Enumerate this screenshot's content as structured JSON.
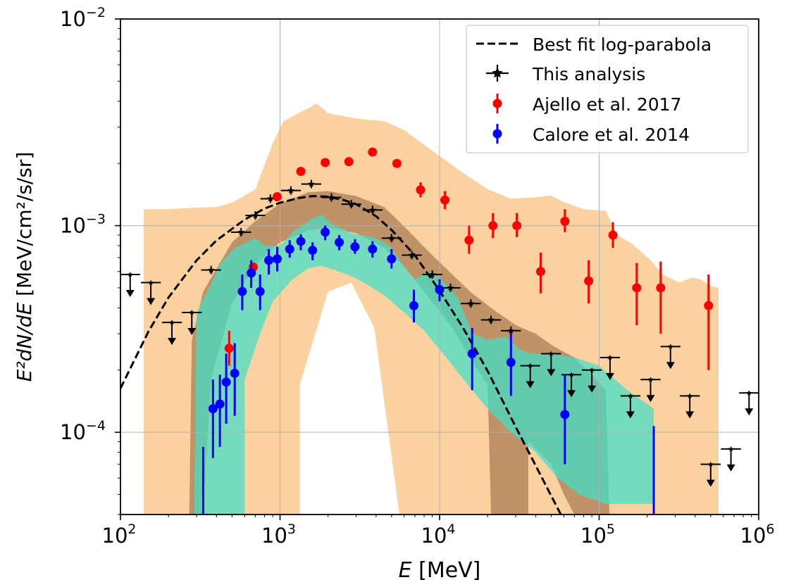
{
  "chart_data": {
    "type": "scatter",
    "title": "",
    "xlabel_var": "E",
    "xlabel_unit": "[MeV]",
    "ylabel_var": "E²dN/dE",
    "ylabel_unit": "[MeV/cm²/s/sr]",
    "xscale": "log",
    "yscale": "log",
    "xlim": [
      100,
      1000000
    ],
    "ylim": [
      4e-05,
      0.01
    ],
    "grid": true,
    "legend_position": "top-right",
    "xticks": [
      {
        "value": 100,
        "base": "10",
        "exp": "2"
      },
      {
        "value": 1000,
        "base": "10",
        "exp": "3"
      },
      {
        "value": 10000,
        "base": "10",
        "exp": "4"
      },
      {
        "value": 100000,
        "base": "10",
        "exp": "5"
      },
      {
        "value": 1000000,
        "base": "10",
        "exp": "6"
      }
    ],
    "yticks": [
      {
        "value": 0.0001,
        "base": "10",
        "exp": "−4"
      },
      {
        "value": 0.001,
        "base": "10",
        "exp": "−3"
      },
      {
        "value": 0.01,
        "base": "10",
        "exp": "−2"
      }
    ],
    "colors": {
      "black": "#000000",
      "red": "#ff0000",
      "blue": "#0000ff",
      "orange_band": "#fbc98f",
      "brown_band": "#a87a52",
      "cyan_band": "#40e0c8"
    },
    "series": [
      {
        "name": "Best fit log-parabola",
        "kind": "dashed-line",
        "x": [
          100,
          150,
          200,
          300,
          400,
          600,
          800,
          1000,
          1300,
          1600,
          2000,
          2500,
          3000,
          4000,
          5000,
          7000,
          10000,
          14000,
          20000,
          30000,
          40000,
          60000
        ],
        "y": [
          0.000163,
          0.000308,
          0.000449,
          0.00068,
          0.000849,
          0.00107,
          0.00121,
          0.00129,
          0.00136,
          0.00139,
          0.00138,
          0.00133,
          0.00127,
          0.00111,
          0.000953,
          0.000719,
          0.000484,
          0.000321,
          0.000198,
          0.000106,
          6.9e-05,
          3.75e-05
        ]
      },
      {
        "name": "This analysis",
        "kind": "points-xerr",
        "points": [
          {
            "x": 700,
            "y": 0.00112
          },
          {
            "x": 870,
            "y": 0.00135
          },
          {
            "x": 1170,
            "y": 0.00148
          },
          {
            "x": 1570,
            "y": 0.00159
          },
          {
            "x": 2100,
            "y": 0.00137
          },
          {
            "x": 2800,
            "y": 0.00127
          },
          {
            "x": 3800,
            "y": 0.00119
          },
          {
            "x": 5000,
            "y": 0.00087
          },
          {
            "x": 6700,
            "y": 0.00072
          },
          {
            "x": 9000,
            "y": 0.00058
          },
          {
            "x": 11700,
            "y": 0.0005
          },
          {
            "x": 15700,
            "y": 0.00042
          },
          {
            "x": 21000,
            "y": 0.00035
          },
          {
            "x": 28000,
            "y": 0.00031
          },
          {
            "x": 570,
            "y": 0.00093
          },
          {
            "x": 370,
            "y": 0.00061
          }
        ]
      },
      {
        "name": "This analysis (upper limits)",
        "kind": "upper-limits",
        "points": [
          {
            "x": 115,
            "y": 0.00058
          },
          {
            "x": 155,
            "y": 0.00053
          },
          {
            "x": 210,
            "y": 0.00034
          },
          {
            "x": 280,
            "y": 0.00038
          },
          {
            "x": 37000,
            "y": 0.00021
          },
          {
            "x": 50000,
            "y": 0.00024
          },
          {
            "x": 67000,
            "y": 0.00019
          },
          {
            "x": 90000,
            "y": 0.0002
          },
          {
            "x": 117000,
            "y": 0.00023
          },
          {
            "x": 157000,
            "y": 0.00015
          },
          {
            "x": 210000,
            "y": 0.00018
          },
          {
            "x": 280000,
            "y": 0.00026
          },
          {
            "x": 370000,
            "y": 0.00015
          },
          {
            "x": 500000,
            "y": 7e-05
          },
          {
            "x": 670000,
            "y": 8.3e-05
          },
          {
            "x": 870000,
            "y": 0.000155
          }
        ]
      },
      {
        "name": "Ajello et al. 2017",
        "kind": "points-yerr",
        "color": "#ff0000",
        "points": [
          {
            "x": 480,
            "y": 0.000255,
            "lo": 0.00021,
            "hi": 0.00031
          },
          {
            "x": 680,
            "y": 0.00063
          },
          {
            "x": 960,
            "y": 0.00138
          },
          {
            "x": 1350,
            "y": 0.00183
          },
          {
            "x": 1920,
            "y": 0.00202
          },
          {
            "x": 2700,
            "y": 0.00204
          },
          {
            "x": 3800,
            "y": 0.00227
          },
          {
            "x": 5400,
            "y": 0.002
          },
          {
            "x": 7600,
            "y": 0.00149,
            "lo": 0.00137,
            "hi": 0.00162
          },
          {
            "x": 10800,
            "y": 0.00133,
            "lo": 0.0012,
            "hi": 0.00147
          },
          {
            "x": 15300,
            "y": 0.00085,
            "lo": 0.00073,
            "hi": 0.001
          },
          {
            "x": 21600,
            "y": 0.001,
            "lo": 0.00087,
            "hi": 0.00115
          },
          {
            "x": 30500,
            "y": 0.001,
            "lo": 0.00088,
            "hi": 0.00115
          },
          {
            "x": 43000,
            "y": 0.0006,
            "lo": 0.00047,
            "hi": 0.00074
          },
          {
            "x": 61000,
            "y": 0.00105,
            "lo": 0.00093,
            "hi": 0.0012
          },
          {
            "x": 86000,
            "y": 0.00054,
            "lo": 0.00042,
            "hi": 0.00068
          },
          {
            "x": 122000,
            "y": 0.0009,
            "lo": 0.00078,
            "hi": 0.00104
          },
          {
            "x": 172000,
            "y": 0.0005,
            "lo": 0.00033,
            "hi": 0.00066
          },
          {
            "x": 243000,
            "y": 0.0005,
            "lo": 0.0003,
            "hi": 0.00067
          },
          {
            "x": 485000,
            "y": 0.00041,
            "lo": 0.0002,
            "hi": 0.00058
          }
        ]
      },
      {
        "name": "Calore et al. 2014",
        "kind": "points-yerr",
        "color": "#0000ff",
        "points": [
          {
            "x": 380,
            "y": 0.00013,
            "lo": 7.5e-05,
            "hi": 0.00018
          },
          {
            "x": 420,
            "y": 0.000137,
            "lo": 8.5e-05,
            "hi": 0.00019
          },
          {
            "x": 460,
            "y": 0.000175,
            "lo": 0.00011,
            "hi": 0.00024
          },
          {
            "x": 520,
            "y": 0.000193,
            "lo": 0.00012,
            "hi": 0.00027
          },
          {
            "x": 580,
            "y": 0.00048,
            "lo": 0.00039,
            "hi": 0.00058
          },
          {
            "x": 660,
            "y": 0.00059,
            "lo": 0.0005,
            "hi": 0.00068
          },
          {
            "x": 750,
            "y": 0.00048,
            "lo": 0.00039,
            "hi": 0.00058
          },
          {
            "x": 850,
            "y": 0.00068,
            "lo": 0.00058,
            "hi": 0.00077
          },
          {
            "x": 960,
            "y": 0.00069,
            "lo": 0.0006,
            "hi": 0.00079
          },
          {
            "x": 1150,
            "y": 0.00077,
            "lo": 0.0007,
            "hi": 0.00085
          },
          {
            "x": 1350,
            "y": 0.00084,
            "lo": 0.00076,
            "hi": 0.00091
          },
          {
            "x": 1600,
            "y": 0.00076,
            "lo": 0.00068,
            "hi": 0.00083
          },
          {
            "x": 1920,
            "y": 0.00093,
            "lo": 0.00085,
            "hi": 0.001
          },
          {
            "x": 2350,
            "y": 0.00083,
            "lo": 0.00076,
            "hi": 0.0009
          },
          {
            "x": 2950,
            "y": 0.00079,
            "lo": 0.00073,
            "hi": 0.00086
          },
          {
            "x": 3800,
            "y": 0.00077,
            "lo": 0.0007,
            "hi": 0.00084
          },
          {
            "x": 5000,
            "y": 0.00069,
            "lo": 0.00062,
            "hi": 0.00077
          },
          {
            "x": 6900,
            "y": 0.00041,
            "lo": 0.00034,
            "hi": 0.00049
          },
          {
            "x": 10000,
            "y": 0.00049,
            "lo": 0.00043,
            "hi": 0.00055
          },
          {
            "x": 16000,
            "y": 0.00024,
            "lo": 0.00016,
            "hi": 0.00032
          },
          {
            "x": 28000,
            "y": 0.000218,
            "lo": 0.00015,
            "hi": 0.0003
          },
          {
            "x": 61000,
            "y": 0.000122,
            "lo": 7e-05,
            "hi": 0.00019
          }
        ]
      }
    ],
    "bands": [
      {
        "name": "orange",
        "color": "#fbc98f",
        "lower": [
          [
            140,
            4e-05
          ],
          [
            1330,
            4e-05
          ],
          [
            1330,
            0.00017
          ],
          [
            2000,
            0.00048
          ],
          [
            2800,
            0.00053
          ],
          [
            3900,
            0.00032
          ],
          [
            5600,
            4e-05
          ],
          [
            560000,
            4e-05
          ]
        ],
        "upper": [
          [
            140,
            0.0012
          ],
          [
            200,
            0.0012
          ],
          [
            280,
            0.00122
          ],
          [
            400,
            0.00123
          ],
          [
            500,
            0.00129
          ],
          [
            700,
            0.0015
          ],
          [
            900,
            0.0025
          ],
          [
            1050,
            0.0032
          ],
          [
            1400,
            0.0036
          ],
          [
            1700,
            0.0039
          ],
          [
            2000,
            0.0035
          ],
          [
            3000,
            0.0033
          ],
          [
            4500,
            0.0032
          ],
          [
            6000,
            0.0029
          ],
          [
            9000,
            0.0023
          ],
          [
            14000,
            0.0018
          ],
          [
            20000,
            0.0015
          ],
          [
            28000,
            0.00135
          ],
          [
            40000,
            0.00137
          ],
          [
            50000,
            0.0014
          ],
          [
            60000,
            0.0013
          ],
          [
            80000,
            0.0012
          ],
          [
            110000,
            0.00118
          ],
          [
            130000,
            0.0009
          ],
          [
            160000,
            0.00082
          ],
          [
            210000,
            0.00068
          ],
          [
            250000,
            0.00058
          ],
          [
            320000,
            0.00053
          ],
          [
            380000,
            0.00056
          ],
          [
            430000,
            0.00055
          ],
          [
            500000,
            0.00051
          ],
          [
            560000,
            0.0005
          ]
        ]
      },
      {
        "name": "brown",
        "color": "#a87a52",
        "lower": [
          [
            270,
            4e-05
          ],
          [
            330,
            4e-05
          ],
          [
            370,
            0.00018
          ],
          [
            500,
            0.00042
          ],
          [
            700,
            0.00065
          ],
          [
            1000,
            0.00083
          ],
          [
            1500,
            0.00095
          ],
          [
            2000,
            0.00098
          ],
          [
            3000,
            0.00092
          ],
          [
            4500,
            0.00078
          ],
          [
            6000,
            0.00063
          ],
          [
            8000,
            0.00048
          ],
          [
            12000,
            0.00032
          ],
          [
            16000,
            0.00022
          ],
          [
            20000,
            0.00017
          ],
          [
            21000,
            4e-05
          ],
          [
            36000,
            4e-05
          ],
          [
            36000,
            9e-05
          ],
          [
            50000,
            7e-05
          ],
          [
            60000,
            5e-05
          ],
          [
            70000,
            4e-05
          ]
        ],
        "upper": [
          [
            270,
            4e-05
          ],
          [
            280,
            0.00028
          ],
          [
            330,
            0.00048
          ],
          [
            500,
            0.00083
          ],
          [
            700,
            0.00105
          ],
          [
            1000,
            0.00128
          ],
          [
            1500,
            0.00145
          ],
          [
            2000,
            0.00147
          ],
          [
            3000,
            0.00139
          ],
          [
            4500,
            0.00123
          ],
          [
            6000,
            0.00099
          ],
          [
            9000,
            0.00072
          ],
          [
            12000,
            0.00058
          ],
          [
            16000,
            0.00047
          ],
          [
            22000,
            0.00039
          ],
          [
            30000,
            0.00033
          ],
          [
            40000,
            0.0003
          ],
          [
            52000,
            0.00026
          ],
          [
            70000,
            0.00023
          ],
          [
            90000,
            0.00019
          ],
          [
            110000,
            0.00016
          ],
          [
            116000,
            4e-05
          ]
        ]
      },
      {
        "name": "cyan",
        "color": "#40e0c8",
        "lower": [
          [
            290,
            4e-05
          ],
          [
            600,
            4e-05
          ],
          [
            600,
            0.00018
          ],
          [
            750,
            0.0003
          ],
          [
            900,
            0.00043
          ],
          [
            1200,
            0.00055
          ],
          [
            1500,
            0.00062
          ],
          [
            1800,
            0.00064
          ],
          [
            2200,
            0.00061
          ],
          [
            2800,
            0.00057
          ],
          [
            3500,
            0.00052
          ],
          [
            4500,
            0.00046
          ],
          [
            6000,
            0.00038
          ],
          [
            8000,
            0.00031
          ],
          [
            11000,
            0.00023
          ],
          [
            15000,
            0.00017
          ],
          [
            20000,
            0.00013
          ],
          [
            28000,
            0.0001
          ],
          [
            40000,
            8e-05
          ],
          [
            55000,
            6e-05
          ],
          [
            75000,
            5e-05
          ],
          [
            110000,
            4.5e-05
          ],
          [
            220000,
            4.5e-05
          ],
          [
            220000,
            4e-05
          ]
        ],
        "upper": [
          [
            290,
            4e-05
          ],
          [
            300,
            0.00038
          ],
          [
            360,
            0.0005
          ],
          [
            420,
            0.00065
          ],
          [
            520,
            0.00078
          ],
          [
            600,
            0.00082
          ],
          [
            700,
            0.00087
          ],
          [
            800,
            0.0008
          ],
          [
            900,
            0.0008
          ],
          [
            1000,
            0.0008
          ],
          [
            1200,
            0.00093
          ],
          [
            1500,
            0.00105
          ],
          [
            1800,
            0.00113
          ],
          [
            2200,
            0.001
          ],
          [
            2800,
            0.00092
          ],
          [
            3800,
            0.00088
          ],
          [
            4500,
            0.00083
          ],
          [
            5000,
            0.00078
          ],
          [
            6000,
            0.00063
          ],
          [
            7000,
            0.00055
          ],
          [
            8500,
            0.0006
          ],
          [
            10000,
            0.00056
          ],
          [
            13000,
            0.00045
          ],
          [
            16000,
            0.0003
          ],
          [
            20000,
            0.00028
          ],
          [
            26000,
            0.00029
          ],
          [
            32000,
            0.00025
          ],
          [
            38000,
            0.00024
          ],
          [
            50000,
            0.00024
          ],
          [
            70000,
            0.00023
          ],
          [
            100000,
            0.00021
          ],
          [
            150000,
            0.00016
          ],
          [
            220000,
            0.00013
          ]
        ]
      }
    ],
    "legend": [
      {
        "label": "Best fit log-parabola",
        "style": "dashed"
      },
      {
        "label": "This analysis",
        "style": "black-cross"
      },
      {
        "label": "Ajello et al. 2017",
        "style": "red-dot"
      },
      {
        "label": "Calore et al. 2014",
        "style": "blue-dot"
      }
    ]
  }
}
